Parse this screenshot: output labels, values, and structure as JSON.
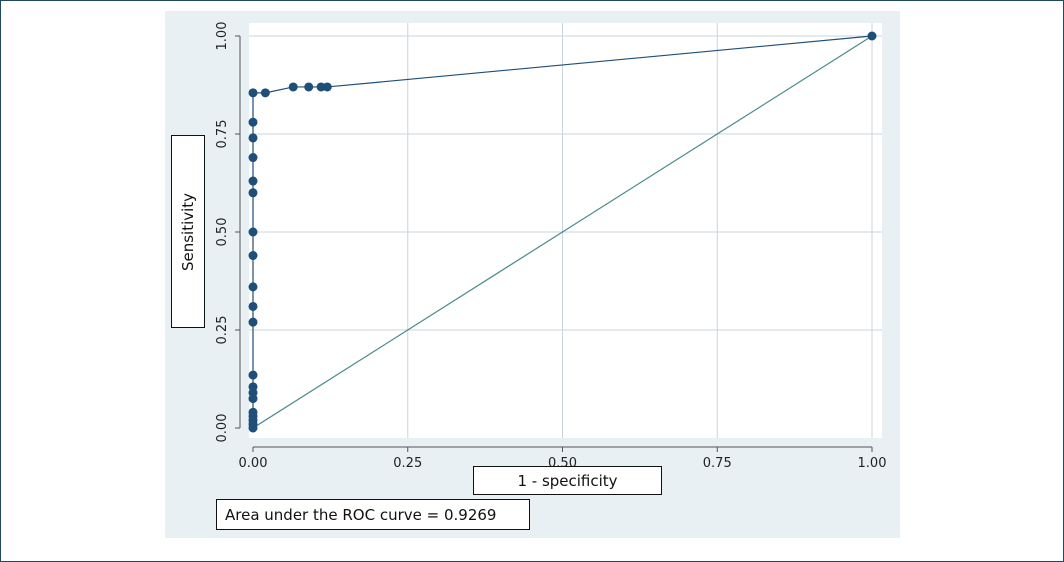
{
  "chart_data": {
    "type": "scatter",
    "title": "",
    "xlabel": "1 - specificity",
    "ylabel": "Sensitivity",
    "xlim": [
      0,
      1
    ],
    "ylim": [
      0,
      1
    ],
    "x_ticks": [
      "0.00",
      "0.25",
      "0.50",
      "0.75",
      "1.00"
    ],
    "y_ticks": [
      "0.00",
      "0.25",
      "0.50",
      "0.75",
      "1.00"
    ],
    "grid": true,
    "annotation": "Area under the ROC curve = 0.9269",
    "colors": {
      "points": "#1f4e79",
      "curve": "#1f4e79",
      "reference": "#4a8a8a",
      "grid": "#c8d6dc"
    },
    "series": [
      {
        "points": [
          [
            0.0,
            0.0
          ],
          [
            0.0,
            0.01
          ],
          [
            0.0,
            0.02
          ],
          [
            0.0,
            0.03
          ],
          [
            0.0,
            0.04
          ],
          [
            0.0,
            0.075
          ],
          [
            0.0,
            0.09
          ],
          [
            0.0,
            0.105
          ],
          [
            0.0,
            0.135
          ],
          [
            0.0,
            0.27
          ],
          [
            0.0,
            0.31
          ],
          [
            0.0,
            0.36
          ],
          [
            0.0,
            0.44
          ],
          [
            0.0,
            0.5
          ],
          [
            0.0,
            0.6
          ],
          [
            0.0,
            0.63
          ],
          [
            0.0,
            0.69
          ],
          [
            0.0,
            0.74
          ],
          [
            0.0,
            0.78
          ],
          [
            0.0,
            0.855
          ],
          [
            0.02,
            0.855
          ],
          [
            0.065,
            0.87
          ],
          [
            0.09,
            0.87
          ],
          [
            0.11,
            0.87
          ],
          [
            0.12,
            0.87
          ],
          [
            1.0,
            1.0
          ]
        ]
      }
    ],
    "reference_line": [
      [
        0,
        0
      ],
      [
        1,
        1
      ]
    ]
  }
}
